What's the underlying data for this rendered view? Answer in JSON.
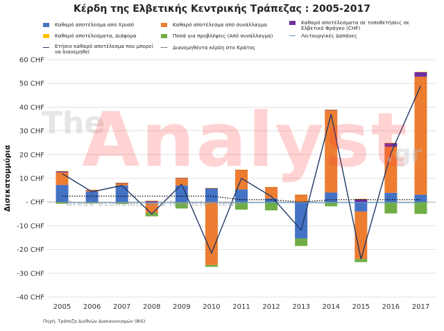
{
  "title": "Κέρδη της Ελβετικής Κεντρικής Τράπεζας : 2005-2017",
  "legend": [
    {
      "label": "Καθαρό αποτέλεσμα από Χρυσό",
      "color": "#4472c4",
      "kind": "bar"
    },
    {
      "label": "Καθαρό αποτέλεσμα από συνάλλαγμα",
      "color": "#ed7d31",
      "kind": "bar"
    },
    {
      "label": "Καθαρό αποτέλεσματα σε τοποθετήσεις σε Ελβετικό Φράγκο (CHF)",
      "color": "#7030a0",
      "kind": "bar"
    },
    {
      "label": "Καθαρό αποτέλεσματα, Διάφορα",
      "color": "#ffc000",
      "kind": "bar"
    },
    {
      "label": "Ποσά για προβλέψεις (Από συνάλλαγμα)",
      "color": "#70ad47",
      "kind": "bar"
    },
    {
      "label": "Λειτουργικές Δαπάνες",
      "color": "#5b9bd5",
      "kind": "thinline"
    },
    {
      "label": "Ετήσιο καθαρό αποτέλεσμα που μπορεί να διανεμηθεί",
      "color": "#203864",
      "kind": "line"
    },
    {
      "label": "Διανεμηθέντα κέρδη στο Κράτος",
      "color": "#000000",
      "kind": "dotted"
    }
  ],
  "watermark": {
    "part1": "The",
    "part2": "Analyst",
    "part3": ".gr",
    "tagline": "Greek economic and financial news"
  },
  "source": "Πηγή: Τράπεζα Διεθνών Διακανονισμών (BIS)",
  "chart_data": {
    "type": "bar",
    "stacked": true,
    "title": "Κέρδη της Ελβετικής Κεντρικής Τράπεζας : 2005-2017",
    "ylabel": "Δισεκατομμύρια",
    "ylim": [
      -40,
      60
    ],
    "yticks": [
      -40,
      -30,
      -20,
      -10,
      0,
      10,
      20,
      30,
      40,
      50,
      60
    ],
    "ytick_labels": [
      "-40 CHF",
      "-30 CHF",
      "-20 CHF",
      "-10 CHF",
      "- CHF",
      "10 CHF",
      "20 CHF",
      "30 CHF",
      "40 CHF",
      "50 CHF",
      "60 CHF"
    ],
    "grid": true,
    "categories": [
      "2005",
      "2006",
      "2007",
      "2008",
      "2009",
      "2010",
      "2011",
      "2012",
      "2013",
      "2014",
      "2015",
      "2016",
      "2017"
    ],
    "series": [
      {
        "name": "Καθαρό αποτέλεσμα από Χρυσό",
        "color": "#4472c4",
        "values": [
          7.2,
          4.3,
          7.0,
          -0.5,
          7.0,
          5.8,
          5.3,
          1.5,
          -15.3,
          4.0,
          -4.0,
          3.9,
          3.1
        ]
      },
      {
        "name": "Καθαρό αποτέλεσμα από συνάλλαγμα",
        "color": "#ed7d31",
        "values": [
          5.3,
          0.5,
          0.8,
          -4.0,
          2.9,
          -26.5,
          8.2,
          4.7,
          3.0,
          34.6,
          -20.0,
          19.4,
          49.7
        ]
      },
      {
        "name": "Καθαρό αποτέλεσματα σε τοποθετήσεις σε Ελβετικό Φράγκο (CHF)",
        "color": "#7030a0",
        "values": [
          0.5,
          0.3,
          0.3,
          0.5,
          0.3,
          0.1,
          0.1,
          0.1,
          0.1,
          0.3,
          1.3,
          1.6,
          2.0
        ]
      },
      {
        "name": "Καθαρό αποτέλεσματα, Διάφορα",
        "color": "#ffc000",
        "values": [
          0.1,
          0.1,
          0.1,
          0.1,
          0.1,
          0.1,
          0.1,
          0.1,
          0.1,
          0.1,
          0.1,
          0.1,
          0.1
        ]
      },
      {
        "name": "Ποσά για προβλέψεις (Από συνάλλαγμα)",
        "color": "#70ad47",
        "values": [
          -0.7,
          -0.6,
          -0.8,
          -1.5,
          -2.7,
          -0.8,
          -3.2,
          -3.5,
          -3.2,
          -1.8,
          -1.3,
          -4.8,
          -5.0
        ]
      }
    ],
    "lines": [
      {
        "name": "Ετήσιο καθαρό αποτέλεσμα που μπορεί να διανεμηθεί",
        "color": "#203864",
        "style": "solid",
        "values": [
          12.0,
          4.3,
          7.0,
          -5.0,
          7.5,
          -21.5,
          10.0,
          2.4,
          -11.8,
          37.0,
          -24.0,
          20.5,
          49.0
        ]
      },
      {
        "name": "Διανεμηθέντα κέρδη στο Κράτος",
        "color": "#000000",
        "style": "dotted",
        "values": [
          2.5,
          2.5,
          2.5,
          2.5,
          2.5,
          2.5,
          1.0,
          1.0,
          0.0,
          1.0,
          1.0,
          1.0,
          1.0
        ]
      },
      {
        "name": "Λειτουργικές Δαπάνες",
        "color": "#5b9bd5",
        "style": "solid",
        "values": [
          -0.3,
          -0.3,
          -0.3,
          -0.3,
          -0.3,
          -0.3,
          -0.3,
          -0.3,
          -0.3,
          -0.3,
          -0.3,
          -0.3,
          -0.3
        ]
      }
    ]
  }
}
